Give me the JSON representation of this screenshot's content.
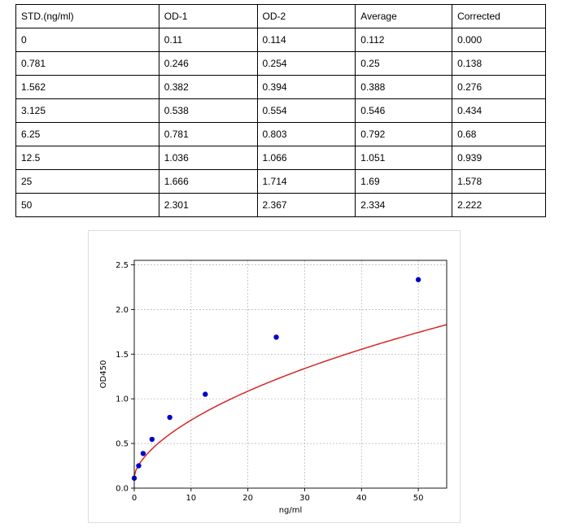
{
  "table": {
    "headers": [
      "STD.(ng/ml)",
      "OD-1",
      "OD-2",
      "Average",
      "Corrected"
    ],
    "rows": [
      [
        "0",
        "0.11",
        "0.114",
        "0.112",
        "0.000"
      ],
      [
        "0.781",
        "0.246",
        "0.254",
        "0.25",
        "0.138"
      ],
      [
        "1.562",
        "0.382",
        "0.394",
        "0.388",
        "0.276"
      ],
      [
        "3.125",
        "0.538",
        "0.554",
        "0.546",
        "0.434"
      ],
      [
        "6.25",
        "0.781",
        "0.803",
        "0.792",
        "0.68"
      ],
      [
        "12.5",
        "1.036",
        "1.066",
        "1.051",
        "0.939"
      ],
      [
        "25",
        "1.666",
        "1.714",
        "1.69",
        "1.578"
      ],
      [
        "50",
        "2.301",
        "2.367",
        "2.334",
        "2.222"
      ]
    ]
  },
  "chart_data": {
    "type": "scatter",
    "xlabel": "ng/ml",
    "ylabel": "OD450",
    "xlim": [
      0,
      55
    ],
    "ylim": [
      0,
      2.55
    ],
    "xticks": [
      0,
      10,
      20,
      30,
      40,
      50
    ],
    "yticks": [
      0.0,
      0.5,
      1.0,
      1.5,
      2.0,
      2.5
    ],
    "xtick_labels": [
      "0",
      "10",
      "20",
      "30",
      "40",
      "50"
    ],
    "ytick_labels": [
      "0.0",
      "0.5",
      "1.0",
      "1.5",
      "2.0",
      "2.5"
    ],
    "grid": true,
    "series": [
      {
        "kind": "points",
        "color": "#0000cc",
        "x": [
          0,
          0.781,
          1.562,
          3.125,
          6.25,
          12.5,
          25,
          50
        ],
        "y": [
          0.112,
          0.25,
          0.388,
          0.546,
          0.792,
          1.051,
          1.69,
          2.334
        ]
      },
      {
        "kind": "fit-curve",
        "color": "#d62728"
      }
    ]
  }
}
